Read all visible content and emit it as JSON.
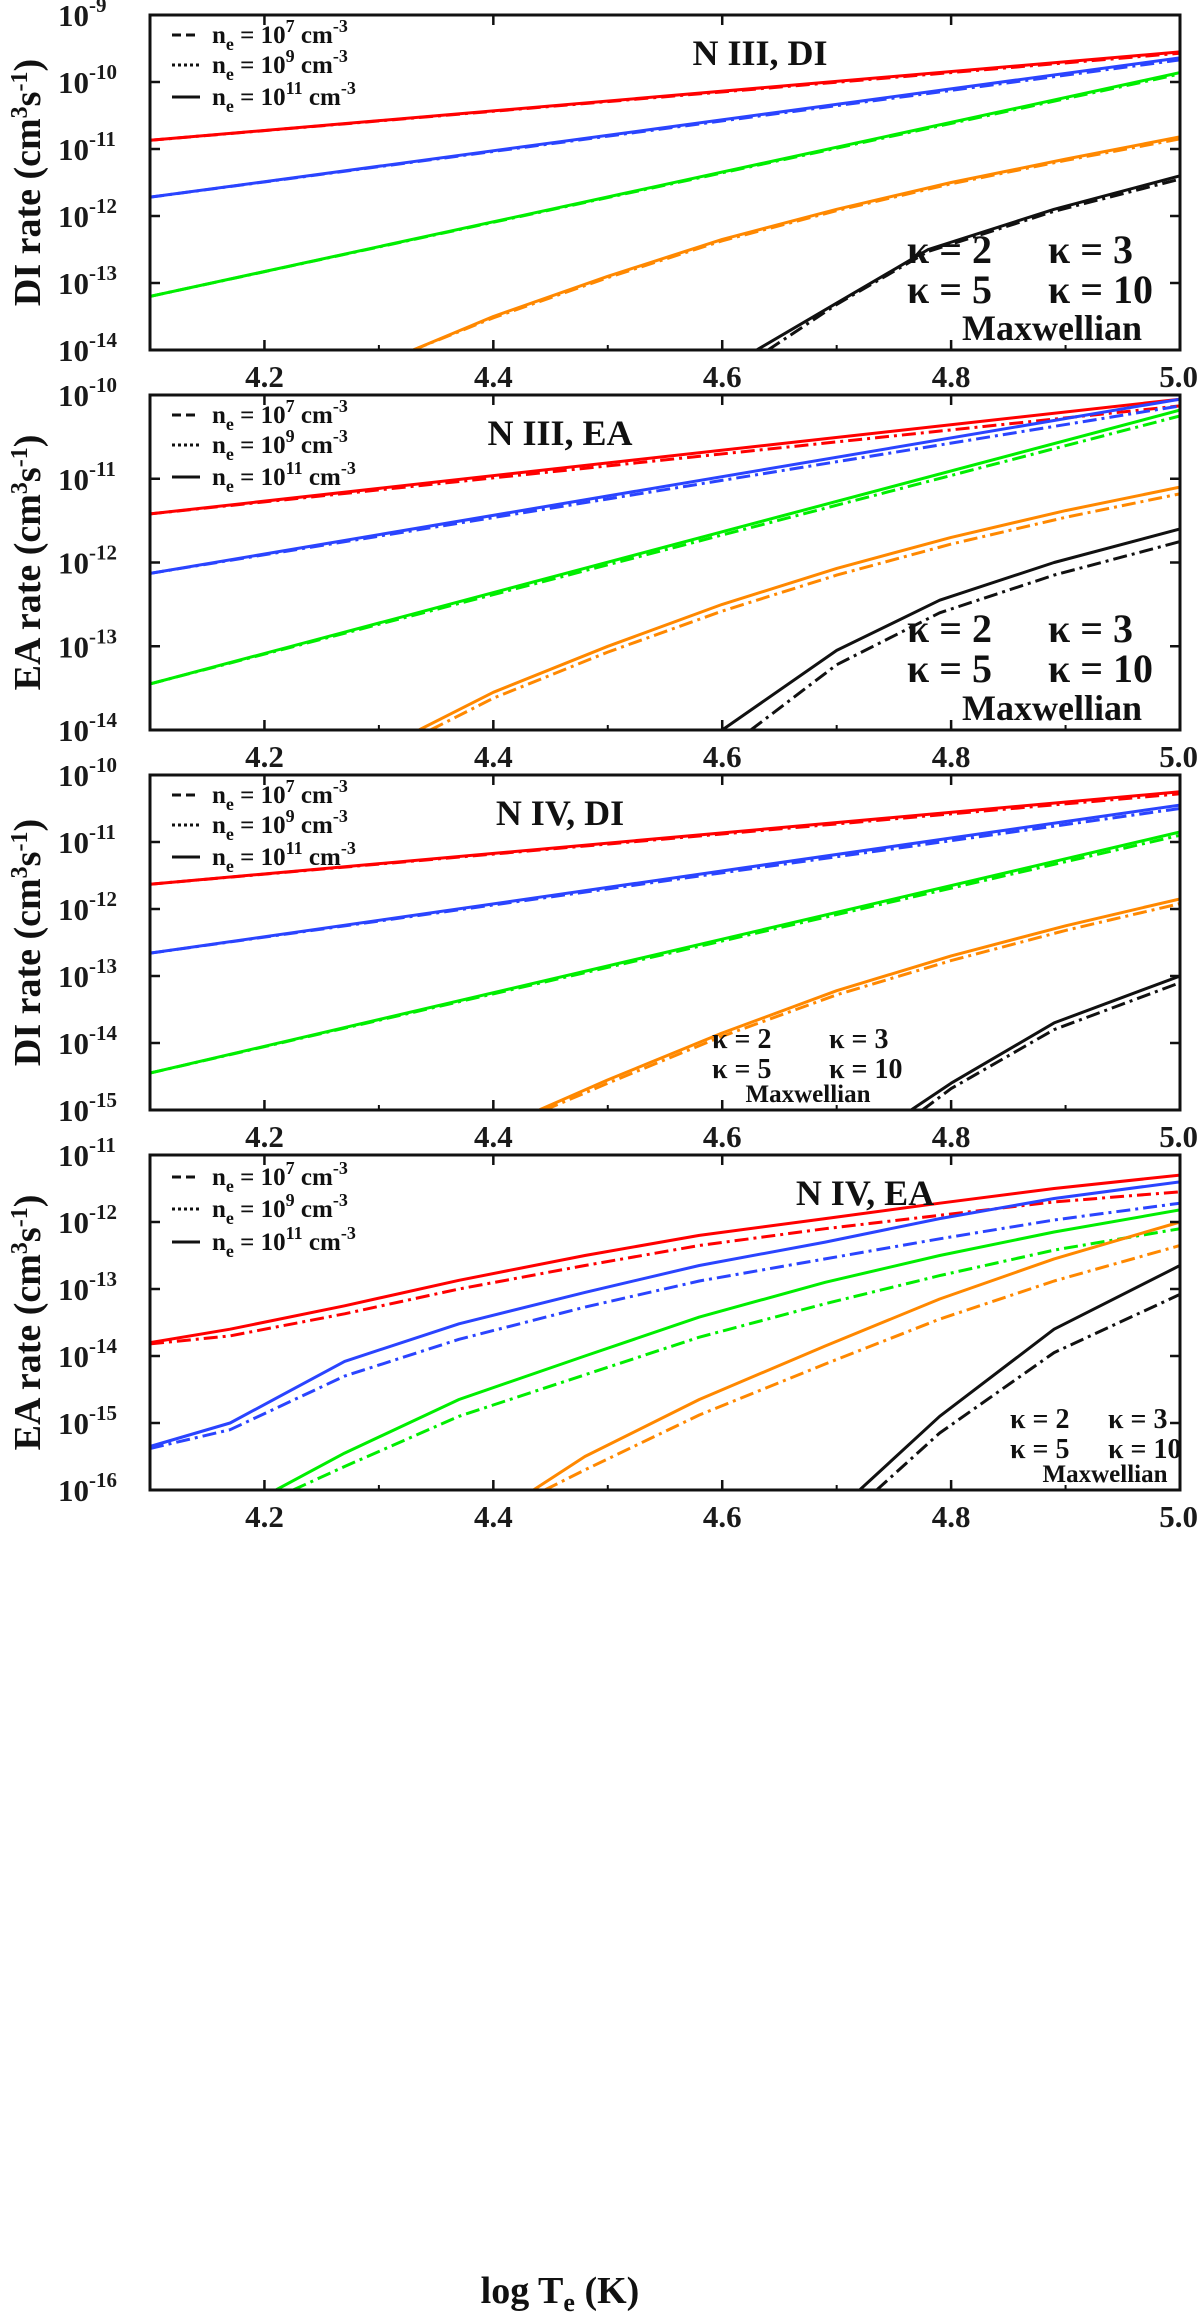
{
  "figure": {
    "xlabel_main": "log T",
    "xlabel_sub": "e",
    "xlabel_unit": " (K)"
  },
  "chart_data": [
    {
      "type": "line",
      "title": "N III, DI",
      "ylabel_name": "DI rate",
      "ylim_exp": [
        -14,
        -9
      ],
      "xlim": [
        4.1,
        5.0
      ],
      "x_ticks": [
        "4.2",
        "4.4",
        "4.6",
        "4.8",
        "5.0"
      ],
      "y_tick_exponents": [
        "-14",
        "-13",
        "-12",
        "-11",
        "-10",
        "-9"
      ],
      "legend": {
        "placement": "top-left",
        "entries": [
          {
            "style": "dashed",
            "ne": "n",
            "ne_sub": "e",
            "eq": " = 10",
            "exp": "7",
            "unit": " cm",
            "unit_exp": "-3"
          },
          {
            "style": "dotted",
            "ne": "n",
            "ne_sub": "e",
            "eq": " = 10",
            "exp": "9",
            "unit": " cm",
            "unit_exp": "-3"
          },
          {
            "style": "solid",
            "ne": "n",
            "ne_sub": "e",
            "eq": " = 10",
            "exp": "11",
            "unit": " cm",
            "unit_exp": "-3"
          }
        ]
      },
      "kappa_labels": {
        "k2": "κ = 2",
        "k3": "κ = 3",
        "k5": "κ = 5",
        "k10": "κ = 10",
        "max": "Maxwellian"
      },
      "series": [
        {
          "color": "#ff0000",
          "curves": [
            {
              "x": [
                4.1,
                5.0
              ],
              "y": [
                -10.87,
                -9.55
              ]
            },
            {
              "x": [
                4.1,
                5.0
              ],
              "y": [
                -10.87,
                -9.57
              ]
            }
          ]
        },
        {
          "color": "#2a44ff",
          "curves": [
            {
              "x": [
                4.1,
                5.0
              ],
              "y": [
                -11.72,
                -9.64
              ]
            },
            {
              "x": [
                4.1,
                5.0
              ],
              "y": [
                -11.72,
                -9.67
              ]
            }
          ]
        },
        {
          "color": "#00ee00",
          "curves": [
            {
              "x": [
                4.1,
                5.0
              ],
              "y": [
                -13.2,
                -9.86
              ]
            },
            {
              "x": [
                4.1,
                5.0
              ],
              "y": [
                -13.2,
                -9.88
              ]
            }
          ]
        },
        {
          "color": "#ff8800",
          "curves": [
            {
              "x": [
                4.33,
                4.4,
                4.5,
                4.6,
                4.7,
                4.8,
                4.9,
                5.0
              ],
              "y": [
                -14.0,
                -13.5,
                -12.9,
                -12.35,
                -11.9,
                -11.5,
                -11.15,
                -10.82
              ]
            },
            {
              "x": [
                4.33,
                4.4,
                4.5,
                4.6,
                4.7,
                4.8,
                4.9,
                5.0
              ],
              "y": [
                -14.0,
                -13.52,
                -12.92,
                -12.37,
                -11.92,
                -11.52,
                -11.17,
                -10.85
              ]
            }
          ]
        },
        {
          "color": "#111111",
          "curves": [
            {
              "x": [
                4.63,
                4.7,
                4.78,
                4.89,
                5.0
              ],
              "y": [
                -14.0,
                -13.3,
                -12.5,
                -11.9,
                -11.4
              ]
            },
            {
              "x": [
                4.64,
                4.7,
                4.78,
                4.89,
                5.0
              ],
              "y": [
                -14.0,
                -13.32,
                -12.53,
                -11.93,
                -11.45
              ]
            }
          ]
        }
      ]
    },
    {
      "type": "line",
      "title": "N III, EA",
      "ylabel_name": "EA rate",
      "ylim_exp": [
        -14,
        -10
      ],
      "xlim": [
        4.1,
        5.0
      ],
      "x_ticks": [
        "4.2",
        "4.4",
        "4.6",
        "4.8",
        "5.0"
      ],
      "y_tick_exponents": [
        "-14",
        "-13",
        "-12",
        "-11",
        "-10"
      ],
      "legend": {
        "placement": "top-left",
        "entries": [
          {
            "style": "dashed",
            "ne": "n",
            "ne_sub": "e",
            "eq": " = 10",
            "exp": "7",
            "unit": " cm",
            "unit_exp": "-3"
          },
          {
            "style": "dotted",
            "ne": "n",
            "ne_sub": "e",
            "eq": " = 10",
            "exp": "9",
            "unit": " cm",
            "unit_exp": "-3"
          },
          {
            "style": "solid",
            "ne": "n",
            "ne_sub": "e",
            "eq": " = 10",
            "exp": "11",
            "unit": " cm",
            "unit_exp": "-3"
          }
        ]
      },
      "kappa_labels": {
        "k2": "κ = 2",
        "k3": "κ = 3",
        "k5": "κ = 5",
        "k10": "κ = 10",
        "max": "Maxwellian"
      },
      "series": [
        {
          "color": "#ff0000",
          "curves": [
            {
              "x": [
                4.1,
                5.0
              ],
              "y": [
                -11.42,
                -10.05
              ]
            },
            {
              "x": [
                4.1,
                5.0
              ],
              "y": [
                -11.42,
                -10.13
              ]
            }
          ]
        },
        {
          "color": "#2a44ff",
          "curves": [
            {
              "x": [
                4.1,
                5.0
              ],
              "y": [
                -12.13,
                -10.05
              ]
            },
            {
              "x": [
                4.1,
                5.0
              ],
              "y": [
                -12.13,
                -10.13
              ]
            }
          ]
        },
        {
          "color": "#00ee00",
          "curves": [
            {
              "x": [
                4.1,
                5.0
              ],
              "y": [
                -13.45,
                -10.18
              ]
            },
            {
              "x": [
                4.1,
                5.0
              ],
              "y": [
                -13.45,
                -10.25
              ]
            }
          ]
        },
        {
          "color": "#ff8800",
          "curves": [
            {
              "x": [
                4.335,
                4.4,
                4.5,
                4.6,
                4.7,
                4.8,
                4.9,
                5.0
              ],
              "y": [
                -14.0,
                -13.55,
                -13.0,
                -12.5,
                -12.07,
                -11.7,
                -11.38,
                -11.1
              ]
            },
            {
              "x": [
                4.345,
                4.4,
                4.5,
                4.6,
                4.7,
                4.8,
                4.9,
                5.0
              ],
              "y": [
                -14.0,
                -13.62,
                -13.07,
                -12.58,
                -12.15,
                -11.78,
                -11.46,
                -11.18
              ]
            }
          ]
        },
        {
          "color": "#111111",
          "curves": [
            {
              "x": [
                4.6,
                4.7,
                4.79,
                4.89,
                5.0
              ],
              "y": [
                -14.0,
                -13.05,
                -12.45,
                -12.0,
                -11.6
              ]
            },
            {
              "x": [
                4.625,
                4.7,
                4.79,
                4.89,
                5.0
              ],
              "y": [
                -14.0,
                -13.22,
                -12.6,
                -12.15,
                -11.75
              ]
            }
          ]
        }
      ]
    },
    {
      "type": "line",
      "title": "N IV, DI",
      "ylabel_name": "DI rate",
      "ylim_exp": [
        -15,
        -10
      ],
      "xlim": [
        4.1,
        5.0
      ],
      "x_ticks": [
        "4.2",
        "4.4",
        "4.6",
        "4.8",
        "5.0"
      ],
      "y_tick_exponents": [
        "-15",
        "-14",
        "-13",
        "-12",
        "-11",
        "-10"
      ],
      "legend": {
        "placement": "top-left",
        "entries": [
          {
            "style": "dashed",
            "ne": "n",
            "ne_sub": "e",
            "eq": " = 10",
            "exp": "7",
            "unit": " cm",
            "unit_exp": "-3"
          },
          {
            "style": "dotted",
            "ne": "n",
            "ne_sub": "e",
            "eq": " = 10",
            "exp": "9",
            "unit": " cm",
            "unit_exp": "-3"
          },
          {
            "style": "solid",
            "ne": "n",
            "ne_sub": "e",
            "eq": " = 10",
            "exp": "11",
            "unit": " cm",
            "unit_exp": "-3"
          }
        ]
      },
      "kappa_labels": {
        "k2": "κ = 2",
        "k3": "κ = 3",
        "k5": "κ = 5",
        "k10": "κ = 10",
        "max": "Maxwellian"
      },
      "series": [
        {
          "color": "#ff0000",
          "curves": [
            {
              "x": [
                4.1,
                5.0
              ],
              "y": [
                -11.63,
                -10.25
              ]
            },
            {
              "x": [
                4.1,
                5.0
              ],
              "y": [
                -11.63,
                -10.28
              ]
            }
          ]
        },
        {
          "color": "#2a44ff",
          "curves": [
            {
              "x": [
                4.1,
                5.0
              ],
              "y": [
                -12.66,
                -10.45
              ]
            },
            {
              "x": [
                4.1,
                5.0
              ],
              "y": [
                -12.66,
                -10.5
              ]
            }
          ]
        },
        {
          "color": "#00ee00",
          "curves": [
            {
              "x": [
                4.1,
                5.0
              ],
              "y": [
                -14.45,
                -10.85
              ]
            },
            {
              "x": [
                4.1,
                5.0
              ],
              "y": [
                -14.45,
                -10.9
              ]
            }
          ]
        },
        {
          "color": "#ff8800",
          "curves": [
            {
              "x": [
                4.44,
                4.5,
                4.6,
                4.7,
                4.8,
                4.9,
                5.0
              ],
              "y": [
                -15.0,
                -14.55,
                -13.85,
                -13.22,
                -12.7,
                -12.25,
                -11.85
              ]
            },
            {
              "x": [
                4.445,
                4.5,
                4.6,
                4.7,
                4.8,
                4.9,
                5.0
              ],
              "y": [
                -15.0,
                -14.6,
                -13.9,
                -13.28,
                -12.77,
                -12.32,
                -11.92
              ]
            }
          ]
        },
        {
          "color": "#111111",
          "curves": [
            {
              "x": [
                4.765,
                4.8,
                4.89,
                5.0
              ],
              "y": [
                -15.0,
                -14.6,
                -13.7,
                -13.0
              ]
            },
            {
              "x": [
                4.775,
                4.8,
                4.89,
                5.0
              ],
              "y": [
                -15.0,
                -14.68,
                -13.8,
                -13.1
              ]
            }
          ]
        }
      ]
    },
    {
      "type": "line",
      "title": "N IV, EA",
      "ylabel_name": "EA rate",
      "ylim_exp": [
        -16,
        -11
      ],
      "xlim": [
        4.1,
        5.0
      ],
      "x_ticks": [
        "4.2",
        "4.4",
        "4.6",
        "4.8",
        "5.0"
      ],
      "y_tick_exponents": [
        "-16",
        "-15",
        "-14",
        "-13",
        "-12",
        "-11"
      ],
      "legend": {
        "placement": "top-left",
        "entries": [
          {
            "style": "dashed",
            "ne": "n",
            "ne_sub": "e",
            "eq": " = 10",
            "exp": "7",
            "unit": " cm",
            "unit_exp": "-3"
          },
          {
            "style": "dotted",
            "ne": "n",
            "ne_sub": "e",
            "eq": " = 10",
            "exp": "9",
            "unit": " cm",
            "unit_exp": "-3"
          },
          {
            "style": "solid",
            "ne": "n",
            "ne_sub": "e",
            "eq": " = 10",
            "exp": "11",
            "unit": " cm",
            "unit_exp": "-3"
          }
        ]
      },
      "kappa_labels": {
        "k2": "κ = 2",
        "k3": "κ = 3",
        "k5": "κ = 5",
        "k10": "κ = 10",
        "max": "Maxwellian"
      },
      "series": [
        {
          "color": "#ff0000",
          "curves": [
            {
              "x": [
                4.1,
                4.17,
                4.27,
                4.37,
                4.48,
                4.58,
                4.69,
                4.79,
                4.89,
                5.0
              ],
              "y": [
                -13.8,
                -13.6,
                -13.25,
                -12.87,
                -12.5,
                -12.2,
                -11.95,
                -11.72,
                -11.5,
                -11.3
              ]
            },
            {
              "x": [
                4.1,
                4.17,
                4.27,
                4.37,
                4.48,
                4.58,
                4.69,
                4.79,
                4.89,
                5.0
              ],
              "y": [
                -13.82,
                -13.7,
                -13.37,
                -13.0,
                -12.65,
                -12.35,
                -12.1,
                -11.9,
                -11.7,
                -11.55
              ]
            }
          ]
        },
        {
          "color": "#2a44ff",
          "curves": [
            {
              "x": [
                4.1,
                4.17,
                4.27,
                4.37,
                4.48,
                4.58,
                4.69,
                4.79,
                4.89,
                5.0
              ],
              "y": [
                -15.35,
                -15.0,
                -14.08,
                -13.52,
                -13.05,
                -12.65,
                -12.3,
                -11.95,
                -11.65,
                -11.4
              ]
            },
            {
              "x": [
                4.1,
                4.17,
                4.27,
                4.37,
                4.48,
                4.58,
                4.69,
                4.79,
                4.89,
                5.0
              ],
              "y": [
                -15.38,
                -15.1,
                -14.3,
                -13.75,
                -13.27,
                -12.88,
                -12.55,
                -12.25,
                -11.97,
                -11.72
              ]
            }
          ]
        },
        {
          "color": "#00ee00",
          "curves": [
            {
              "x": [
                4.21,
                4.27,
                4.37,
                4.48,
                4.58,
                4.69,
                4.79,
                4.89,
                5.0
              ],
              "y": [
                -16.0,
                -15.45,
                -14.65,
                -14.0,
                -13.42,
                -12.9,
                -12.5,
                -12.15,
                -11.82
              ]
            },
            {
              "x": [
                4.225,
                4.27,
                4.37,
                4.48,
                4.58,
                4.69,
                4.79,
                4.89,
                5.0
              ],
              "y": [
                -16.0,
                -15.65,
                -14.9,
                -14.28,
                -13.72,
                -13.22,
                -12.8,
                -12.42,
                -12.1
              ]
            }
          ]
        },
        {
          "color": "#ff8800",
          "curves": [
            {
              "x": [
                4.435,
                4.48,
                4.58,
                4.69,
                4.79,
                4.89,
                5.0
              ],
              "y": [
                -16.0,
                -15.5,
                -14.65,
                -13.85,
                -13.15,
                -12.55,
                -12.0
              ]
            },
            {
              "x": [
                4.445,
                4.48,
                4.58,
                4.69,
                4.79,
                4.89,
                5.0
              ],
              "y": [
                -16.0,
                -15.7,
                -14.88,
                -14.12,
                -13.45,
                -12.88,
                -12.35
              ]
            }
          ]
        },
        {
          "color": "#111111",
          "curves": [
            {
              "x": [
                4.72,
                4.79,
                4.89,
                5.0
              ],
              "y": [
                -16.0,
                -14.9,
                -13.6,
                -12.65
              ]
            },
            {
              "x": [
                4.735,
                4.79,
                4.89,
                5.0
              ],
              "y": [
                -16.0,
                -15.15,
                -13.95,
                -13.08
              ]
            }
          ]
        }
      ]
    }
  ]
}
